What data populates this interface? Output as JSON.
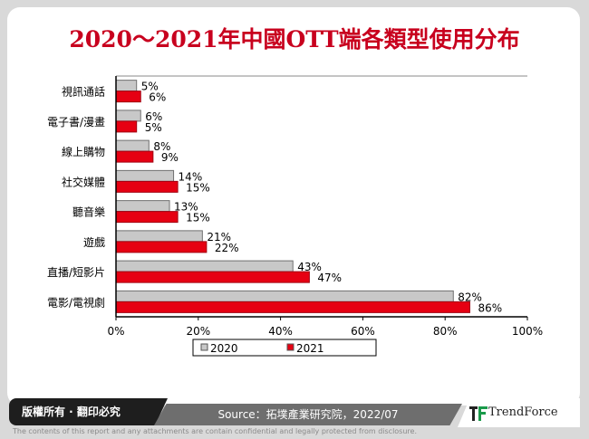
{
  "chart_data": {
    "type": "bar",
    "orientation": "horizontal",
    "title": "2020～2021年中國OTT端各類型使用分布",
    "categories": [
      "視訊通話",
      "電子書/漫畫",
      "線上購物",
      "社交媒體",
      "聽音樂",
      "遊戲",
      "直播/短影片",
      "電影/電視劇"
    ],
    "series": [
      {
        "name": "2020",
        "color": "#c8c8c8",
        "values": [
          5,
          6,
          8,
          14,
          13,
          21,
          43,
          82
        ]
      },
      {
        "name": "2021",
        "color": "#e60012",
        "values": [
          6,
          5,
          9,
          15,
          15,
          22,
          47,
          86
        ]
      }
    ],
    "xlim": [
      0,
      100
    ],
    "xticks": [
      "0%",
      "20%",
      "40%",
      "60%",
      "80%",
      "100%"
    ],
    "legend": "bottom",
    "grid": false
  },
  "footer": {
    "copyright": "版權所有 · 翻印必究",
    "source": "Source：拓墣產業研究院，2022/07",
    "brand": "TrendForce",
    "disclaimer": "The contents of this report and any attachments are contain confidential and legally protected from disclosure."
  }
}
